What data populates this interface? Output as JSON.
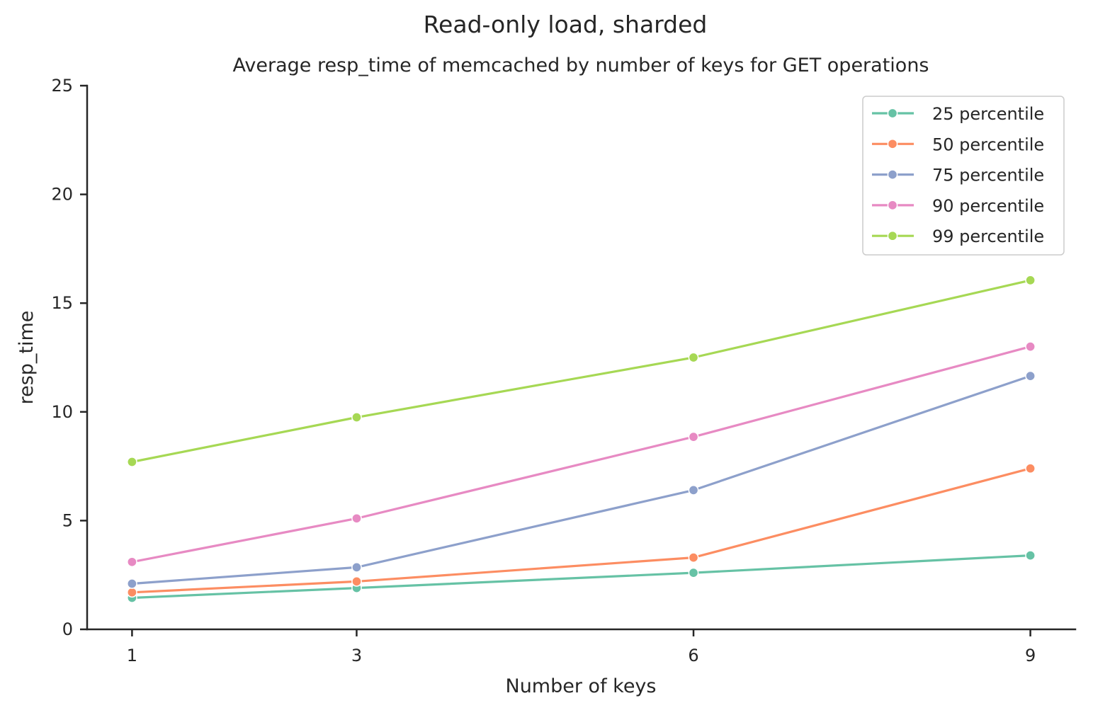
{
  "chart_data": {
    "type": "line",
    "suptitle": "Read-only load, sharded",
    "title": "Average resp_time of memcached by number of keys for GET operations",
    "xlabel": "Number of keys",
    "ylabel": "resp_time",
    "x": [
      1,
      3,
      6,
      9
    ],
    "x_tick_labels": [
      "1",
      "3",
      "6",
      "9"
    ],
    "xlim": [
      0.6,
      9.4
    ],
    "ylim": [
      0,
      25
    ],
    "y_ticks": [
      0,
      5,
      10,
      15,
      20,
      25
    ],
    "y_tick_labels": [
      "0",
      "5",
      "10",
      "15",
      "20",
      "25"
    ],
    "grid": false,
    "legend_position": "top-right",
    "series": [
      {
        "name": "25 percentile",
        "color": "#66c2a5",
        "values": [
          1.45,
          1.9,
          2.6,
          3.4
        ]
      },
      {
        "name": "50 percentile",
        "color": "#fc8d62",
        "values": [
          1.7,
          2.2,
          3.3,
          7.4
        ]
      },
      {
        "name": "75 percentile",
        "color": "#8da0cb",
        "values": [
          2.1,
          2.85,
          6.4,
          11.65
        ]
      },
      {
        "name": "90 percentile",
        "color": "#e78ac3",
        "values": [
          3.1,
          5.1,
          8.85,
          13.0
        ]
      },
      {
        "name": "99 percentile",
        "color": "#a6d854",
        "values": [
          7.7,
          9.75,
          12.5,
          16.05
        ]
      }
    ]
  }
}
